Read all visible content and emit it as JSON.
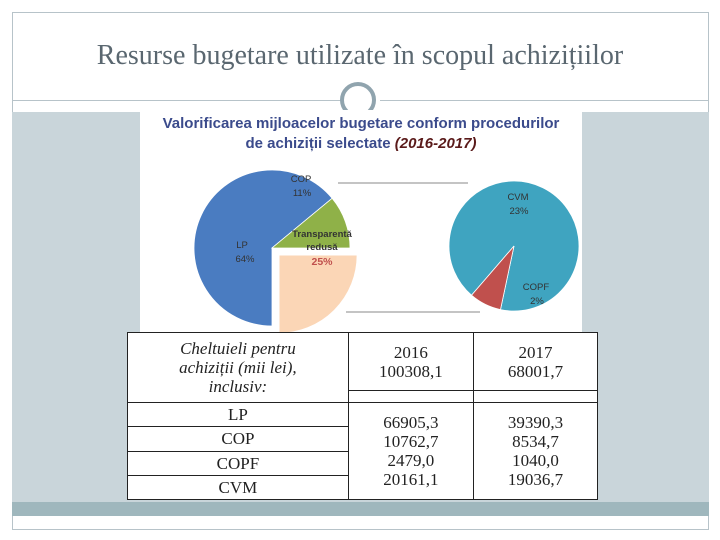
{
  "slide": {
    "title": "Resurse bugetare utilizate în scopul achizițiilor"
  },
  "chart_data": {
    "type": "pie",
    "title_line1": "Valorificarea mijloacelor bugetare conform procedurilor",
    "title_line2": "de achiziții selectate",
    "title_years": "(2016-2017)",
    "pies": [
      {
        "slices": [
          {
            "label": "LP",
            "value_label": "64%",
            "value": 64,
            "color": "#4a7cc1"
          },
          {
            "label": "COP",
            "value_label": "11%",
            "value": 11,
            "color": "#8fb148"
          },
          {
            "label": "Transparentă redusă",
            "label_lines": [
              "Transparentă",
              "redusă"
            ],
            "value_label": "25%",
            "value": 25,
            "color": "#fbd6b6"
          }
        ]
      },
      {
        "slices": [
          {
            "label": "CVM",
            "value_label": "23%",
            "value": 23,
            "color": "#3fa4c0"
          },
          {
            "label": "COPF",
            "value_label": "2%",
            "value": 2,
            "color": "#c0504d"
          }
        ]
      }
    ]
  },
  "table": {
    "header_label": [
      "Cheltuieli pentru",
      "achiziții (mii lei),",
      "inclusiv:"
    ],
    "years": [
      "2016",
      "2017"
    ],
    "totals": [
      "100308,1",
      "68001,7"
    ],
    "rows": [
      {
        "label": "LP",
        "v2016": "66905,3",
        "v2017": "39390,3"
      },
      {
        "label": "COP",
        "v2016": "10762,7",
        "v2017": "8534,7"
      },
      {
        "label": "COPF",
        "v2016": "2479,0",
        "v2017": "1040,0"
      },
      {
        "label": "CVM",
        "v2016": "20161,1",
        "v2017": "19036,7"
      }
    ]
  }
}
